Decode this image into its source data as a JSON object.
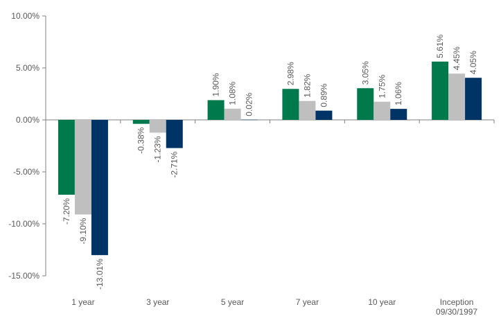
{
  "chart_data": {
    "type": "bar",
    "categories": [
      "1 year",
      "3 year",
      "5 year",
      "7 year",
      "10 year",
      "Inception\n09/30/1997"
    ],
    "series": [
      {
        "color": "#007A4D",
        "values": [
          -7.2,
          -0.38,
          1.9,
          2.98,
          3.05,
          5.61
        ]
      },
      {
        "color": "#BFBFBF",
        "values": [
          -9.1,
          -1.23,
          1.08,
          1.82,
          1.75,
          4.45
        ]
      },
      {
        "color": "#003366",
        "values": [
          -13.01,
          -2.71,
          0.02,
          0.89,
          1.06,
          4.05
        ]
      }
    ],
    "data_labels": [
      [
        "-7.20%",
        "-0.38%",
        "1.90%",
        "2.98%",
        "3.05%",
        "5.61%"
      ],
      [
        "-9.10%",
        "-1.23%",
        "1.08%",
        "1.82%",
        "1.75%",
        "4.45%"
      ],
      [
        "-13.01%",
        "-2.71%",
        "0.02%",
        "0.89%",
        "1.06%",
        "4.05%"
      ]
    ],
    "y_ticks": [
      10,
      5,
      0,
      -5,
      -10,
      -15
    ],
    "y_tick_labels": [
      "10.00%",
      "5.00%",
      "0.00%",
      "-5.00%",
      "-10.00%",
      "-15.00%"
    ],
    "ylim": [
      -15,
      10
    ],
    "grid": false,
    "title": "",
    "xlabel": "",
    "ylabel": ""
  }
}
